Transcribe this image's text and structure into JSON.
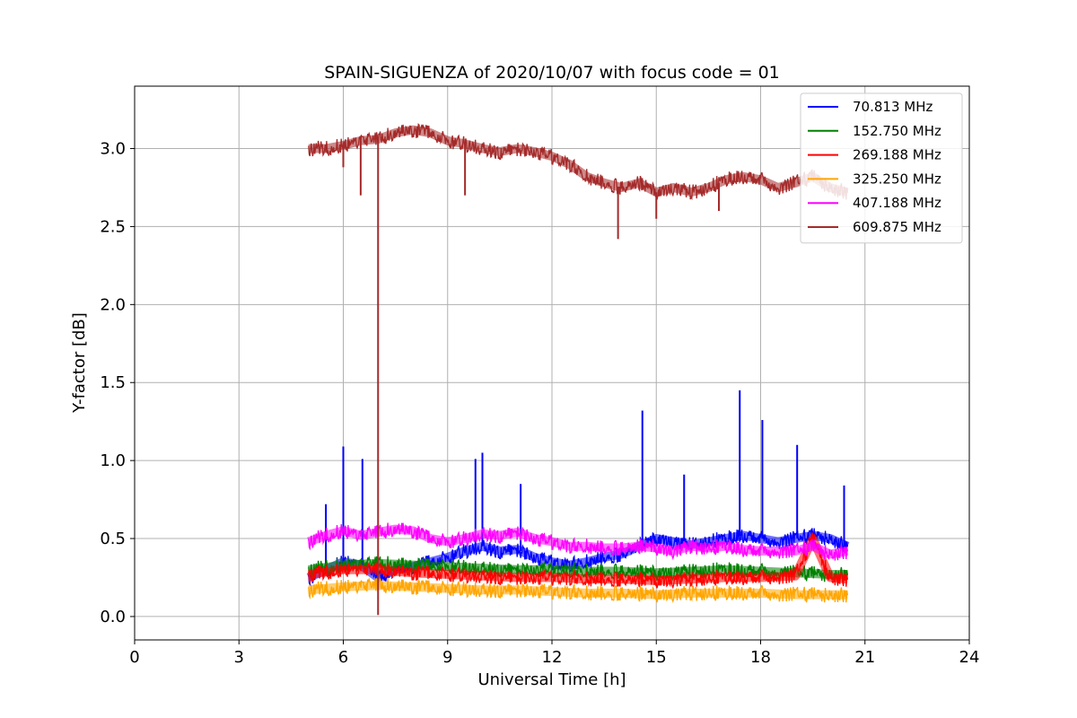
{
  "chart_data": {
    "type": "line",
    "title": "SPAIN-SIGUENZA of 2020/10/07 with focus code = 01",
    "xlabel": "Universal Time [h]",
    "ylabel": "Y-factor [dB]",
    "xlim": [
      0,
      24
    ],
    "ylim": [
      -0.15,
      3.4
    ],
    "xticks": [
      0,
      3,
      6,
      9,
      12,
      15,
      18,
      21,
      24
    ],
    "xtick_labels": [
      "0",
      "3",
      "6",
      "9",
      "12",
      "15",
      "18",
      "21",
      "24"
    ],
    "yticks": [
      0.0,
      0.5,
      1.0,
      1.5,
      2.0,
      2.5,
      3.0
    ],
    "ytick_labels": [
      "0.0",
      "0.5",
      "1.0",
      "1.5",
      "2.0",
      "2.5",
      "3.0"
    ],
    "grid": true,
    "legend_position": "top-right",
    "series": [
      {
        "name": " 70.813 MHz",
        "color": "#0000ff",
        "x": [
          5.0,
          5.5,
          6.0,
          6.5,
          7.0,
          7.5,
          8.0,
          8.5,
          9.0,
          9.5,
          10.0,
          10.5,
          11.0,
          11.5,
          12.0,
          12.5,
          13.0,
          13.5,
          14.0,
          14.5,
          15.0,
          15.5,
          16.0,
          16.5,
          17.0,
          17.5,
          18.0,
          18.5,
          19.0,
          19.5,
          20.0,
          20.5
        ],
        "y": [
          0.25,
          0.3,
          0.35,
          0.33,
          0.25,
          0.3,
          0.32,
          0.35,
          0.38,
          0.42,
          0.45,
          0.42,
          0.43,
          0.38,
          0.35,
          0.33,
          0.35,
          0.38,
          0.4,
          0.45,
          0.5,
          0.48,
          0.46,
          0.48,
          0.5,
          0.52,
          0.5,
          0.48,
          0.5,
          0.52,
          0.5,
          0.45
        ],
        "spikes": [
          [
            5.5,
            0.72
          ],
          [
            6.0,
            1.09
          ],
          [
            6.55,
            1.01
          ],
          [
            9.8,
            1.01
          ],
          [
            10.0,
            1.05
          ],
          [
            11.1,
            0.85
          ],
          [
            14.6,
            1.32
          ],
          [
            15.8,
            0.91
          ],
          [
            17.4,
            1.45
          ],
          [
            18.05,
            1.26
          ],
          [
            19.05,
            1.1
          ],
          [
            20.4,
            0.84
          ]
        ]
      },
      {
        "name": "152.750 MHz",
        "color": "#008000",
        "x": [
          5.0,
          6.0,
          7.0,
          8.0,
          9.0,
          10.0,
          11.0,
          12.0,
          13.0,
          14.0,
          15.0,
          16.0,
          17.0,
          18.0,
          19.0,
          20.0,
          20.5
        ],
        "y": [
          0.3,
          0.33,
          0.34,
          0.33,
          0.32,
          0.31,
          0.3,
          0.3,
          0.29,
          0.29,
          0.28,
          0.29,
          0.3,
          0.29,
          0.28,
          0.27,
          0.27
        ]
      },
      {
        "name": "269.188 MHz",
        "color": "#ff0000",
        "x": [
          5.0,
          6.0,
          7.0,
          8.0,
          9.0,
          10.0,
          11.0,
          12.0,
          13.0,
          14.0,
          15.0,
          16.0,
          17.0,
          18.0,
          19.0,
          19.5,
          20.0,
          20.5
        ],
        "y": [
          0.27,
          0.3,
          0.3,
          0.28,
          0.27,
          0.26,
          0.25,
          0.25,
          0.24,
          0.24,
          0.23,
          0.24,
          0.25,
          0.25,
          0.26,
          0.5,
          0.25,
          0.24
        ]
      },
      {
        "name": "325.250 MHz",
        "color": "#ffa500",
        "x": [
          5.0,
          6.0,
          7.0,
          8.0,
          9.0,
          10.0,
          11.0,
          12.0,
          13.0,
          14.0,
          15.0,
          16.0,
          17.0,
          18.0,
          19.0,
          20.0,
          20.5
        ],
        "y": [
          0.17,
          0.19,
          0.2,
          0.19,
          0.18,
          0.17,
          0.17,
          0.16,
          0.15,
          0.15,
          0.14,
          0.15,
          0.15,
          0.15,
          0.14,
          0.14,
          0.14
        ]
      },
      {
        "name": "407.188 MHz",
        "color": "#ff00ff",
        "x": [
          5.0,
          5.5,
          6.0,
          6.5,
          7.0,
          7.5,
          8.0,
          8.5,
          9.0,
          9.5,
          10.0,
          10.5,
          11.0,
          11.5,
          12.0,
          12.5,
          13.0,
          13.5,
          14.0,
          14.5,
          15.0,
          15.5,
          16.0,
          16.5,
          17.0,
          17.5,
          18.0,
          18.5,
          19.0,
          19.5,
          20.0,
          20.5
        ],
        "y": [
          0.48,
          0.52,
          0.55,
          0.52,
          0.54,
          0.56,
          0.55,
          0.5,
          0.48,
          0.5,
          0.53,
          0.52,
          0.54,
          0.5,
          0.48,
          0.45,
          0.45,
          0.44,
          0.44,
          0.45,
          0.44,
          0.42,
          0.45,
          0.44,
          0.45,
          0.43,
          0.42,
          0.42,
          0.42,
          0.45,
          0.4,
          0.42
        ]
      },
      {
        "name": "609.875 MHz",
        "color": "#a52a2a",
        "x": [
          5.0,
          5.5,
          6.0,
          6.5,
          7.0,
          7.5,
          8.0,
          8.5,
          9.0,
          9.5,
          10.0,
          10.5,
          11.0,
          11.5,
          12.0,
          12.5,
          13.0,
          13.5,
          14.0,
          14.5,
          15.0,
          15.5,
          16.0,
          16.5,
          17.0,
          17.5,
          18.0,
          18.5,
          19.0,
          19.5,
          20.0,
          20.5
        ],
        "y": [
          3.0,
          3.0,
          3.02,
          3.05,
          3.06,
          3.1,
          3.12,
          3.1,
          3.05,
          3.03,
          3.0,
          2.98,
          3.0,
          2.98,
          2.95,
          2.9,
          2.82,
          2.78,
          2.75,
          2.78,
          2.72,
          2.75,
          2.72,
          2.75,
          2.8,
          2.82,
          2.8,
          2.75,
          2.78,
          2.82,
          2.75,
          2.72
        ],
        "spikes": [
          [
            6.0,
            2.88
          ],
          [
            6.5,
            2.7
          ],
          [
            7.0,
            0.01
          ],
          [
            9.5,
            2.7
          ],
          [
            13.9,
            2.42
          ],
          [
            15.0,
            2.55
          ],
          [
            16.8,
            2.6
          ]
        ]
      }
    ]
  }
}
